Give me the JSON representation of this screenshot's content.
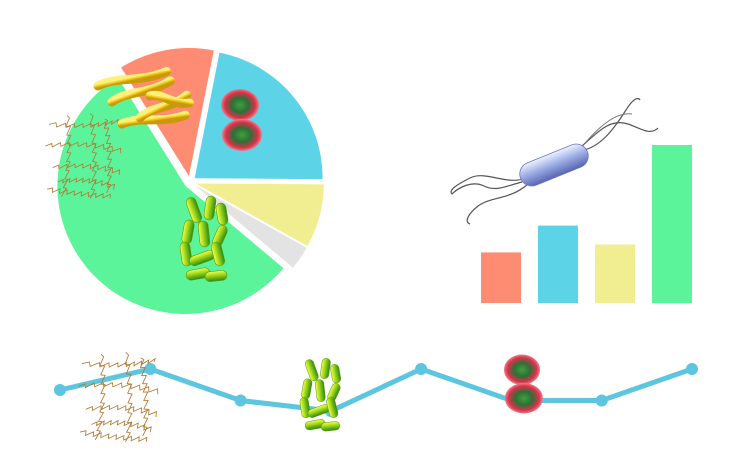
{
  "colors": {
    "salmon": "#fd8c72",
    "sky": "#5cd3e6",
    "butter": "#f1ee91",
    "mist": "#e3e3e3",
    "mint": "#5cf49b",
    "line": "#5cc6e0"
  },
  "icons": [
    "yellow-rod-bacteria-icon",
    "red-cocci-icon",
    "green-rod-bacteria-icon",
    "spirochete-icon",
    "flagellated-bacterium-icon"
  ],
  "chart_data": [
    {
      "type": "pie",
      "slices": [
        {
          "value": 12,
          "color": "#fd8c72",
          "icon": "yellow-rod-bacteria-icon"
        },
        {
          "value": 22,
          "color": "#5cd3e6",
          "icon": "red-cocci-icon"
        },
        {
          "value": 8,
          "color": "#f1ee91",
          "icon": "spirochete-icon"
        },
        {
          "value": 3,
          "color": "#e3e3e3",
          "icon": ""
        },
        {
          "value": 55,
          "color": "#5cf49b",
          "icon": "green-rod-bacteria-icon"
        }
      ],
      "exploded": true
    },
    {
      "type": "bar",
      "values": [
        32,
        49,
        37,
        100
      ],
      "colors": [
        "#fd8c72",
        "#5cd3e6",
        "#f1ee91",
        "#5cf49b"
      ],
      "ylim": [
        0,
        100
      ],
      "icon": "flagellated-bacterium-icon"
    },
    {
      "type": "line",
      "x": [
        1,
        2,
        3,
        4,
        5,
        6,
        7,
        8
      ],
      "y": [
        4,
        6,
        3,
        2,
        6,
        3,
        3,
        6
      ],
      "ylim": [
        0,
        8
      ],
      "markers": true,
      "icons": [
        "spirochete-icon",
        "green-rod-bacteria-icon",
        "red-cocci-icon"
      ]
    }
  ]
}
